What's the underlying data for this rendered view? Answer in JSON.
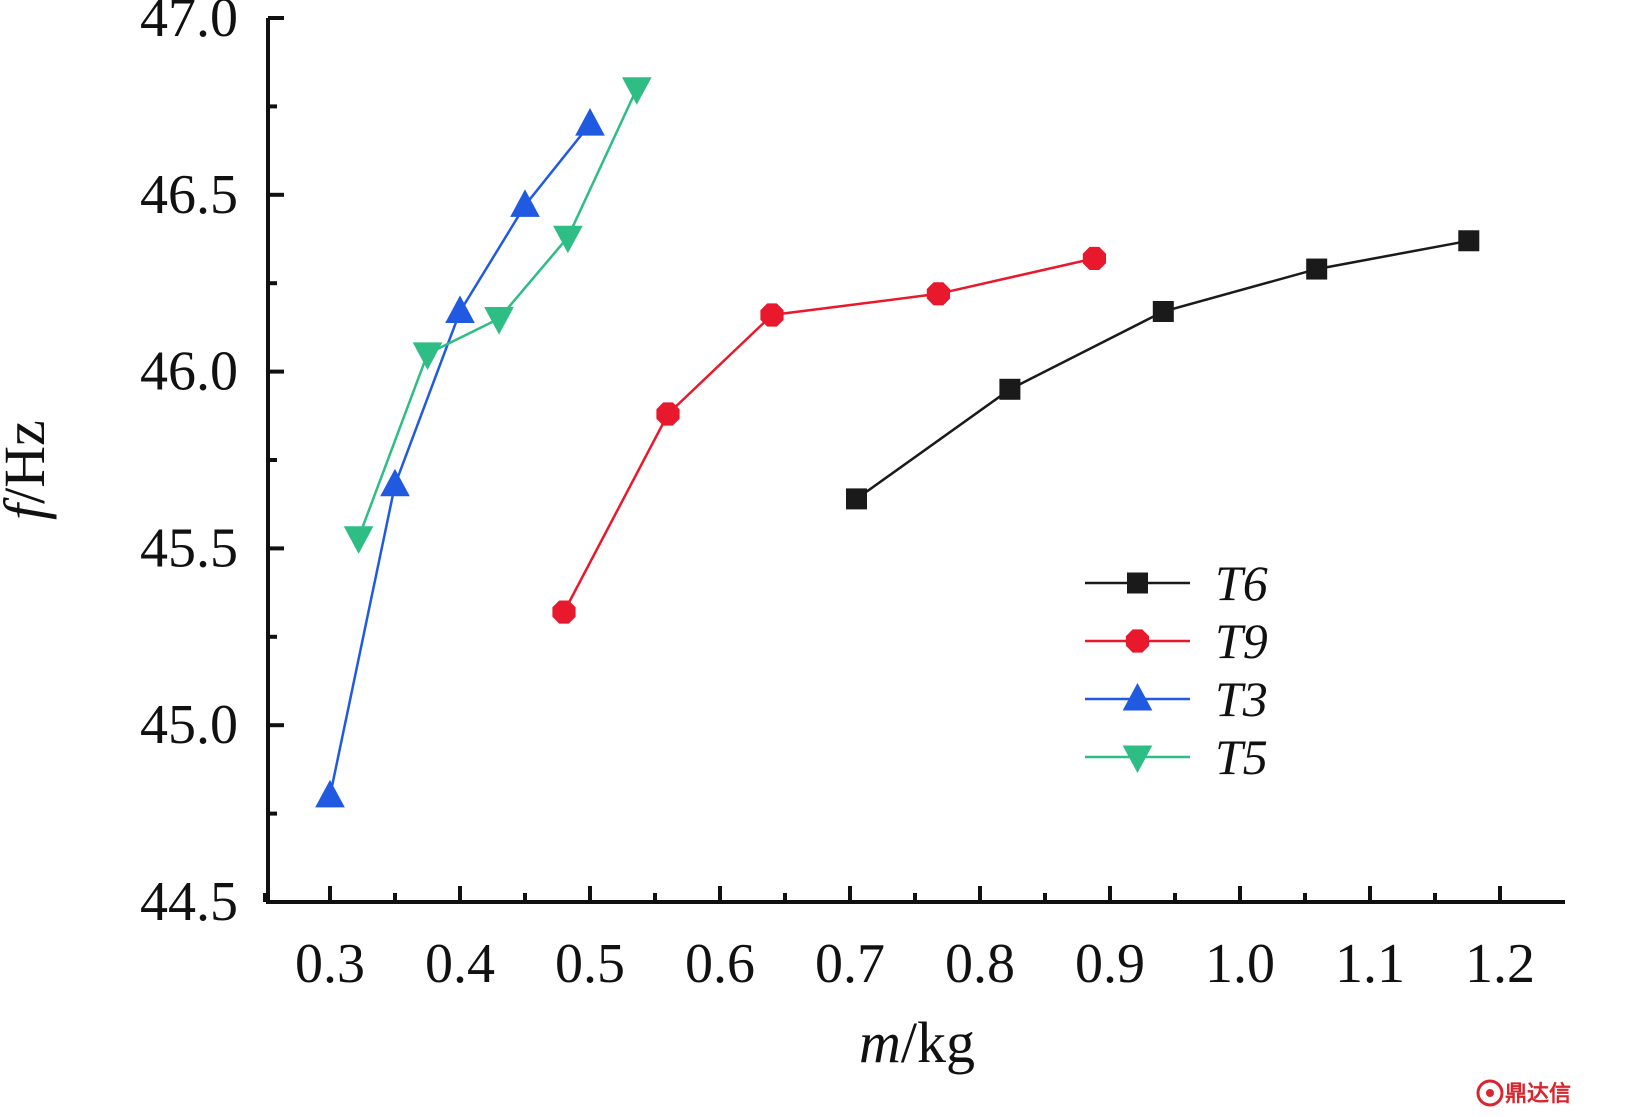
{
  "chart_data": {
    "type": "line",
    "xlabel_italic": "m",
    "xlabel_unit": "/kg",
    "ylabel_italic": "f",
    "ylabel_unit": "/Hz",
    "xlim": [
      0.25,
      1.26
    ],
    "ylim": [
      44.5,
      47.0
    ],
    "xticks": [
      0.3,
      0.4,
      0.5,
      0.6,
      0.7,
      0.8,
      0.9,
      1.0,
      1.1,
      1.2
    ],
    "xtick_labels": [
      "0.3",
      "0.4",
      "0.5",
      "0.6",
      "0.7",
      "0.8",
      "0.9",
      "1.0",
      "1.1",
      "1.2"
    ],
    "yticks": [
      44.5,
      45.0,
      45.5,
      46.0,
      46.5,
      47.0
    ],
    "ytick_labels": [
      "44.5",
      "45.0",
      "45.5",
      "46.0",
      "46.5",
      "47.0"
    ],
    "legend_position": "right-center",
    "grid": false,
    "series": [
      {
        "name": "T6",
        "color": "#1a1a1a",
        "marker": "square",
        "x": [
          0.705,
          0.823,
          0.941,
          1.059,
          1.176
        ],
        "y": [
          45.64,
          45.95,
          46.17,
          46.29,
          46.37
        ]
      },
      {
        "name": "T9",
        "color": "#e8192c",
        "marker": "octagon",
        "x": [
          0.48,
          0.56,
          0.64,
          0.768,
          0.888
        ],
        "y": [
          45.32,
          45.88,
          46.16,
          46.22,
          46.32
        ]
      },
      {
        "name": "T3",
        "color": "#1f5ae0",
        "marker": "triangle-up",
        "x": [
          0.3,
          0.35,
          0.4,
          0.45,
          0.5
        ],
        "y": [
          44.8,
          45.68,
          46.17,
          46.47,
          46.7
        ]
      },
      {
        "name": "T5",
        "color": "#2ebd85",
        "marker": "triangle-down",
        "x": [
          0.322,
          0.375,
          0.43,
          0.483,
          0.536
        ],
        "y": [
          45.53,
          46.05,
          46.15,
          46.38,
          46.8
        ]
      }
    ]
  },
  "watermark": {
    "text": "鼎达信"
  }
}
